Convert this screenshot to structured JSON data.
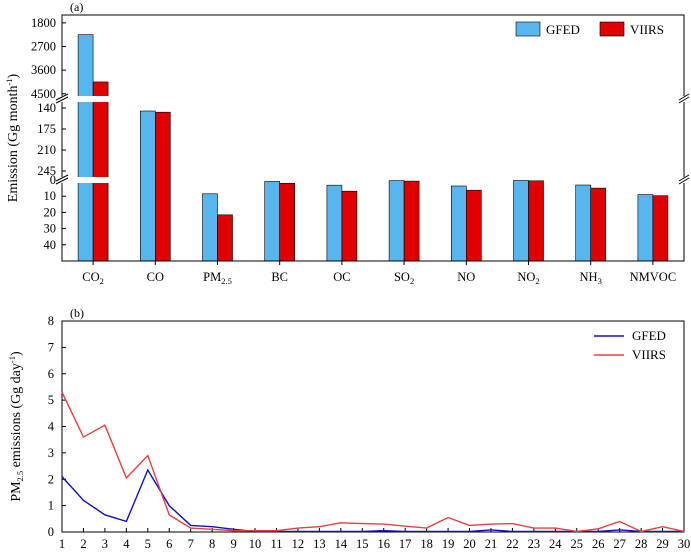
{
  "figure": {
    "colors": {
      "gfed_bar": "#57B6EE",
      "viirs_bar": "#E00000",
      "gfed_line": "#1010C8",
      "viirs_line": "#E84040",
      "axis": "#000000",
      "background": "#ffffff"
    }
  },
  "chart_data": [
    {
      "type": "bar",
      "panel_label": "(a)",
      "ylabel": {
        "main": "Emission (Gg month",
        "sup": "-1",
        "close": ")"
      },
      "y_axis_broken": true,
      "y_segments": [
        {
          "range": [
            0,
            50
          ],
          "ticks": [
            "0",
            "10",
            "20",
            "30",
            "40"
          ]
        },
        {
          "range": [
            125,
            260
          ],
          "ticks": [
            "140",
            "175",
            "210",
            "245"
          ]
        },
        {
          "range": [
            1500,
            4700
          ],
          "ticks": [
            "1800",
            "2700",
            "3600",
            "4500"
          ]
        }
      ],
      "categories": [
        {
          "main": "CO",
          "sub": "2"
        },
        {
          "main": "CO",
          "sub": ""
        },
        {
          "main": "PM",
          "sub": "2.5"
        },
        {
          "main": "BC",
          "sub": ""
        },
        {
          "main": "OC",
          "sub": ""
        },
        {
          "main": "SO",
          "sub": "2"
        },
        {
          "main": "NO",
          "sub": ""
        },
        {
          "main": "NO",
          "sub": "2"
        },
        {
          "main": "NH",
          "sub": "3"
        },
        {
          "main": "NMVOC",
          "sub": ""
        }
      ],
      "series": [
        {
          "name": "GFED",
          "values": [
            2250,
            145,
            8.5,
            0.9,
            3.2,
            0.4,
            3.7,
            0.3,
            3.1,
            9.0
          ]
        },
        {
          "name": "VIIRS",
          "values": [
            4050,
            147,
            21.5,
            2.0,
            6.9,
            0.7,
            6.3,
            0.5,
            5.0,
            9.7
          ]
        }
      ],
      "legend": {
        "position": "top-right",
        "entries": [
          "GFED",
          "VIIRS"
        ]
      }
    },
    {
      "type": "line",
      "panel_label": "(b)",
      "ylabel": {
        "main": "PM",
        "sub": "2.5",
        "rest": " emissions (Gg day",
        "sup": "-1",
        "close": ")"
      },
      "xlim": [
        1,
        30
      ],
      "ylim": [
        0,
        8
      ],
      "x_ticks": [
        "1",
        "2",
        "3",
        "4",
        "5",
        "6",
        "7",
        "8",
        "9",
        "10",
        "11",
        "12",
        "13",
        "14",
        "15",
        "16",
        "17",
        "18",
        "19",
        "20",
        "21",
        "22",
        "23",
        "24",
        "25",
        "26",
        "27",
        "28",
        "29",
        "30"
      ],
      "y_ticks": [
        "0",
        "1",
        "2",
        "3",
        "4",
        "5",
        "6",
        "7",
        "8"
      ],
      "x": [
        1,
        2,
        3,
        4,
        5,
        6,
        7,
        8,
        9,
        10,
        11,
        12,
        13,
        14,
        15,
        16,
        17,
        18,
        19,
        20,
        21,
        22,
        23,
        24,
        25,
        26,
        27,
        28,
        29,
        30
      ],
      "series": [
        {
          "name": "GFED",
          "values": [
            2.1,
            1.2,
            0.65,
            0.4,
            2.35,
            1.0,
            0.25,
            0.2,
            0.1,
            0.02,
            0.02,
            0.02,
            0.02,
            0.02,
            0.02,
            0.05,
            0.02,
            0.02,
            0.02,
            0.02,
            0.08,
            0.02,
            0.02,
            0.02,
            0.02,
            0.02,
            0.08,
            0.02,
            0.02,
            0.02
          ]
        },
        {
          "name": "VIIRS",
          "values": [
            5.3,
            3.6,
            4.05,
            2.05,
            2.9,
            0.65,
            0.15,
            0.1,
            0.05,
            0.05,
            0.05,
            0.15,
            0.2,
            0.35,
            0.32,
            0.3,
            0.22,
            0.15,
            0.55,
            0.25,
            0.3,
            0.32,
            0.15,
            0.15,
            0.02,
            0.12,
            0.4,
            0.02,
            0.2,
            0.02
          ]
        }
      ],
      "legend": {
        "position": "top-right",
        "entries": [
          "GFED",
          "VIIRS"
        ]
      }
    }
  ]
}
